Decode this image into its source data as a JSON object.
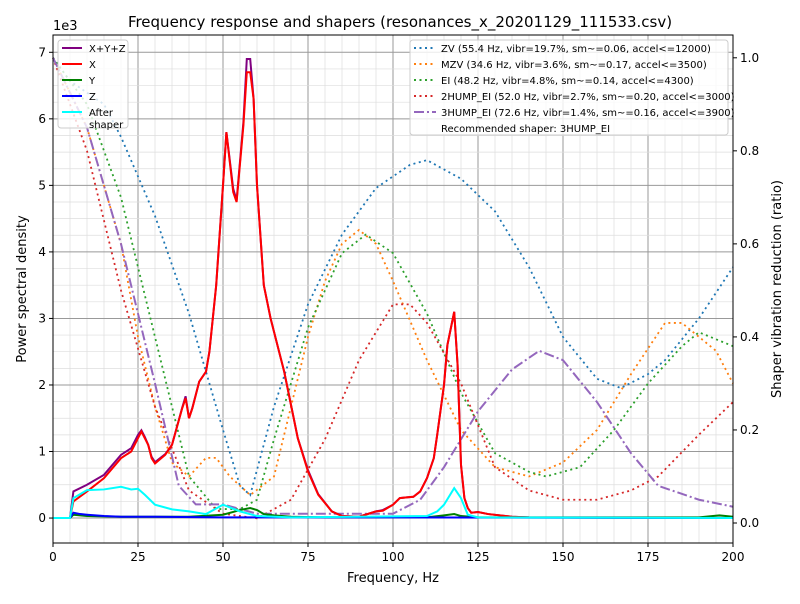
{
  "chart_data": {
    "type": "line",
    "title": "Frequency response and shapers (resonances_x_20201129_111533.csv)",
    "xlabel": "Frequency, Hz",
    "ylabel": "Power spectral density",
    "ylabel_right": "Shaper vibration reduction (ratio)",
    "y_offset_label": "1e3",
    "xlim": [
      0,
      200
    ],
    "ylim": [
      -0.375,
      7.26
    ],
    "ylim_right": [
      -0.043,
      1.049
    ],
    "xticks": [
      "0",
      "25",
      "50",
      "75",
      "100",
      "125",
      "150",
      "175",
      "200"
    ],
    "yticks": [
      "0",
      "1",
      "2",
      "3",
      "4",
      "5",
      "6",
      "7"
    ],
    "yticks_right": [
      "0.0",
      "0.2",
      "0.4",
      "0.6",
      "0.8",
      "1.0"
    ],
    "grid": true,
    "legend_left_position": "top-left",
    "legend_right_position": "top-right",
    "psd_series": [
      {
        "name": "X+Y+Z",
        "color": "#800080",
        "x": [
          0,
          5,
          6,
          10,
          15,
          20,
          23,
          25,
          26,
          27,
          28,
          29,
          30,
          33,
          35,
          38,
          39,
          40,
          41,
          43,
          45,
          46,
          48,
          50,
          51,
          53,
          54,
          56,
          57,
          58,
          59,
          60,
          62,
          64,
          68,
          70,
          72,
          75,
          78,
          82,
          85,
          90,
          95,
          97,
          100,
          102,
          104,
          106,
          108,
          110,
          112,
          113,
          115,
          116,
          118,
          119,
          120,
          121,
          122,
          123,
          125,
          128,
          135,
          140,
          200
        ],
        "y": [
          0,
          0,
          0.4,
          0.5,
          0.65,
          0.95,
          1.05,
          1.25,
          1.32,
          1.22,
          1.1,
          0.92,
          0.84,
          0.96,
          1.1,
          1.66,
          1.83,
          1.5,
          1.66,
          2.05,
          2.2,
          2.5,
          3.5,
          5.0,
          5.8,
          4.95,
          4.77,
          5.95,
          6.9,
          6.9,
          6.3,
          5.0,
          3.5,
          3.0,
          2.2,
          1.7,
          1.2,
          0.72,
          0.36,
          0.1,
          0.03,
          0.02,
          0.1,
          0.12,
          0.2,
          0.3,
          0.31,
          0.32,
          0.4,
          0.6,
          0.9,
          1.25,
          2.0,
          2.6,
          3.1,
          2.3,
          0.8,
          0.3,
          0.15,
          0.08,
          0.09,
          0.06,
          0.02,
          0.01,
          0
        ]
      },
      {
        "name": "X",
        "color": "#ff0000",
        "x": [
          0,
          5,
          6,
          10,
          15,
          20,
          23,
          25,
          26,
          27,
          28,
          29,
          30,
          33,
          35,
          38,
          39,
          40,
          41,
          43,
          45,
          46,
          48,
          50,
          51,
          53,
          54,
          56,
          57,
          58,
          59,
          60,
          62,
          64,
          68,
          70,
          72,
          75,
          78,
          82,
          85,
          90,
          95,
          97,
          100,
          102,
          104,
          106,
          108,
          110,
          112,
          113,
          115,
          116,
          118,
          119,
          120,
          121,
          122,
          123,
          125,
          128,
          135,
          140,
          200
        ],
        "y": [
          0,
          0,
          0.25,
          0.4,
          0.6,
          0.9,
          1.0,
          1.2,
          1.3,
          1.2,
          1.1,
          0.9,
          0.82,
          0.95,
          1.1,
          1.65,
          1.8,
          1.5,
          1.65,
          2.05,
          2.2,
          2.5,
          3.5,
          5.0,
          5.8,
          4.9,
          4.75,
          5.9,
          6.7,
          6.7,
          6.3,
          5.0,
          3.5,
          3.0,
          2.2,
          1.7,
          1.2,
          0.7,
          0.35,
          0.1,
          0.03,
          0.02,
          0.1,
          0.11,
          0.2,
          0.3,
          0.31,
          0.32,
          0.4,
          0.6,
          0.9,
          1.25,
          2.0,
          2.6,
          3.1,
          2.3,
          0.8,
          0.3,
          0.15,
          0.08,
          0.09,
          0.06,
          0.02,
          0.01,
          0
        ]
      },
      {
        "name": "Y",
        "color": "#008000",
        "x": [
          0,
          5,
          6,
          10,
          20,
          30,
          40,
          50,
          55,
          58,
          60,
          62,
          65,
          70,
          80,
          110,
          115,
          118,
          120,
          125,
          190,
          196,
          200
        ],
        "y": [
          0,
          0,
          0.05,
          0.03,
          0.02,
          0.02,
          0.02,
          0.05,
          0.12,
          0.15,
          0.12,
          0.06,
          0.04,
          0.02,
          0.01,
          0.01,
          0.04,
          0.06,
          0.03,
          0.01,
          0.01,
          0.04,
          0.02
        ]
      },
      {
        "name": "Z",
        "color": "#0000ff",
        "x": [
          0,
          5,
          6,
          8,
          10,
          15,
          20,
          30,
          50,
          100,
          200
        ],
        "y": [
          0,
          0,
          0.08,
          0.06,
          0.05,
          0.03,
          0.02,
          0.02,
          0.01,
          0.01,
          0
        ]
      },
      {
        "name": "After\nshaper",
        "color": "#00ffff",
        "x": [
          0,
          5,
          6,
          10,
          15,
          20,
          23,
          25,
          27,
          30,
          35,
          40,
          45,
          50,
          55,
          60,
          70,
          110,
          113,
          115,
          118,
          120,
          122,
          125,
          200
        ],
        "y": [
          0,
          0,
          0.3,
          0.42,
          0.43,
          0.47,
          0.43,
          0.44,
          0.35,
          0.2,
          0.13,
          0.1,
          0.06,
          0.2,
          0.1,
          0.03,
          0.01,
          0.03,
          0.1,
          0.2,
          0.45,
          0.3,
          0.05,
          0.01,
          0
        ]
      }
    ],
    "shaper_series": [
      {
        "name": "ZV (55.4 Hz, vibr=19.7%, sm~=0.06, accel<=12000)",
        "color": "#1f77b4",
        "style": "dotted",
        "x": [
          0,
          5,
          15,
          20,
          30,
          40,
          50,
          55,
          58,
          65,
          75,
          85,
          95,
          105,
          110,
          120,
          130,
          140,
          150,
          160,
          167,
          175,
          180,
          190,
          200
        ],
        "y": [
          1.0,
          0.95,
          0.9,
          0.83,
          0.66,
          0.45,
          0.2,
          0.08,
          0.06,
          0.25,
          0.47,
          0.62,
          0.72,
          0.77,
          0.78,
          0.74,
          0.67,
          0.55,
          0.4,
          0.31,
          0.29,
          0.32,
          0.35,
          0.44,
          0.55
        ]
      },
      {
        "name": "MZV (34.6 Hz, vibr=3.6%, sm~=0.17, accel<=3500)",
        "color": "#ff7f0e",
        "style": "dotted",
        "x": [
          0,
          10,
          20,
          25,
          30,
          35,
          40,
          45,
          48,
          52,
          58,
          65,
          75,
          80,
          85,
          90,
          95,
          100,
          110,
          120,
          130,
          140,
          150,
          160,
          170,
          180,
          185,
          195,
          200
        ],
        "y": [
          1.0,
          0.85,
          0.6,
          0.4,
          0.25,
          0.13,
          0.1,
          0.14,
          0.14,
          0.1,
          0.06,
          0.1,
          0.4,
          0.52,
          0.6,
          0.63,
          0.6,
          0.52,
          0.35,
          0.2,
          0.12,
          0.1,
          0.13,
          0.2,
          0.32,
          0.43,
          0.43,
          0.37,
          0.3
        ]
      },
      {
        "name": "EI (48.2 Hz, vibr=4.8%, sm~=0.14, accel<=4300)",
        "color": "#2ca02c",
        "style": "dotted",
        "x": [
          0,
          10,
          20,
          30,
          40,
          48,
          55,
          60,
          65,
          75,
          85,
          92,
          100,
          110,
          120,
          130,
          140,
          145,
          155,
          165,
          175,
          185,
          190,
          200
        ],
        "y": [
          1.0,
          0.9,
          0.7,
          0.4,
          0.1,
          0.03,
          0.03,
          0.05,
          0.18,
          0.42,
          0.58,
          0.62,
          0.58,
          0.45,
          0.28,
          0.15,
          0.11,
          0.1,
          0.12,
          0.2,
          0.3,
          0.38,
          0.41,
          0.38
        ]
      },
      {
        "name": "2HUMP_EI (52.0 Hz, vibr=2.7%, sm~=0.20, accel<=3000)",
        "color": "#d62728",
        "style": "dotted",
        "x": [
          0,
          10,
          20,
          30,
          40,
          50,
          60,
          70,
          80,
          90,
          100,
          105,
          110,
          120,
          130,
          140,
          150,
          160,
          170,
          178,
          190,
          200
        ],
        "y": [
          1.0,
          0.8,
          0.5,
          0.25,
          0.07,
          0.02,
          0.01,
          0.05,
          0.18,
          0.35,
          0.47,
          0.47,
          0.43,
          0.3,
          0.12,
          0.07,
          0.05,
          0.05,
          0.07,
          0.1,
          0.19,
          0.26
        ]
      },
      {
        "name": "3HUMP_EI (72.6 Hz, vibr=1.4%, sm~=0.16, accel<=3900)",
        "color": "#9467bd",
        "style": "dashdot",
        "x": [
          0,
          10,
          20,
          30,
          37,
          42,
          50,
          60,
          80,
          100,
          108,
          115,
          125,
          135,
          143,
          150,
          160,
          170,
          178,
          190,
          200
        ],
        "y": [
          1.0,
          0.85,
          0.6,
          0.3,
          0.08,
          0.04,
          0.04,
          0.02,
          0.02,
          0.02,
          0.05,
          0.12,
          0.24,
          0.33,
          0.37,
          0.35,
          0.26,
          0.15,
          0.08,
          0.05,
          0.035
        ]
      }
    ],
    "annotation": "Recommended shaper: 3HUMP_EI"
  }
}
